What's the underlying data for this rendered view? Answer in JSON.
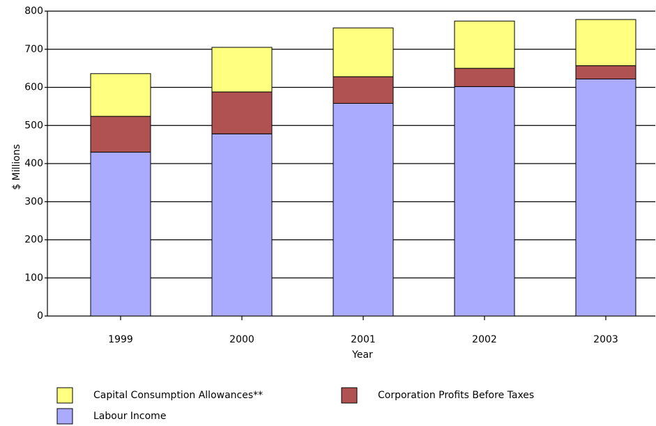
{
  "chart_data": {
    "type": "stacked_bar",
    "x_label": "Year",
    "y_label": "$ Millions",
    "categories": [
      "1999",
      "2000",
      "2001",
      "2002",
      "2003"
    ],
    "series": [
      {
        "name": "Labour Income",
        "color": "#aaaaff",
        "values": [
          430,
          478,
          558,
          602,
          622
        ]
      },
      {
        "name": "Corporation Profits Before Taxes",
        "color": "#b05252",
        "values": [
          94,
          110,
          70,
          48,
          35
        ]
      },
      {
        "name": "Capital Consumption Allowances**",
        "color": "#ffff80",
        "values": [
          112,
          117,
          128,
          124,
          121
        ]
      }
    ],
    "ylim": [
      0,
      800
    ],
    "yticks": [
      0,
      100,
      200,
      300,
      400,
      500,
      600,
      700,
      800
    ],
    "grid": true
  }
}
